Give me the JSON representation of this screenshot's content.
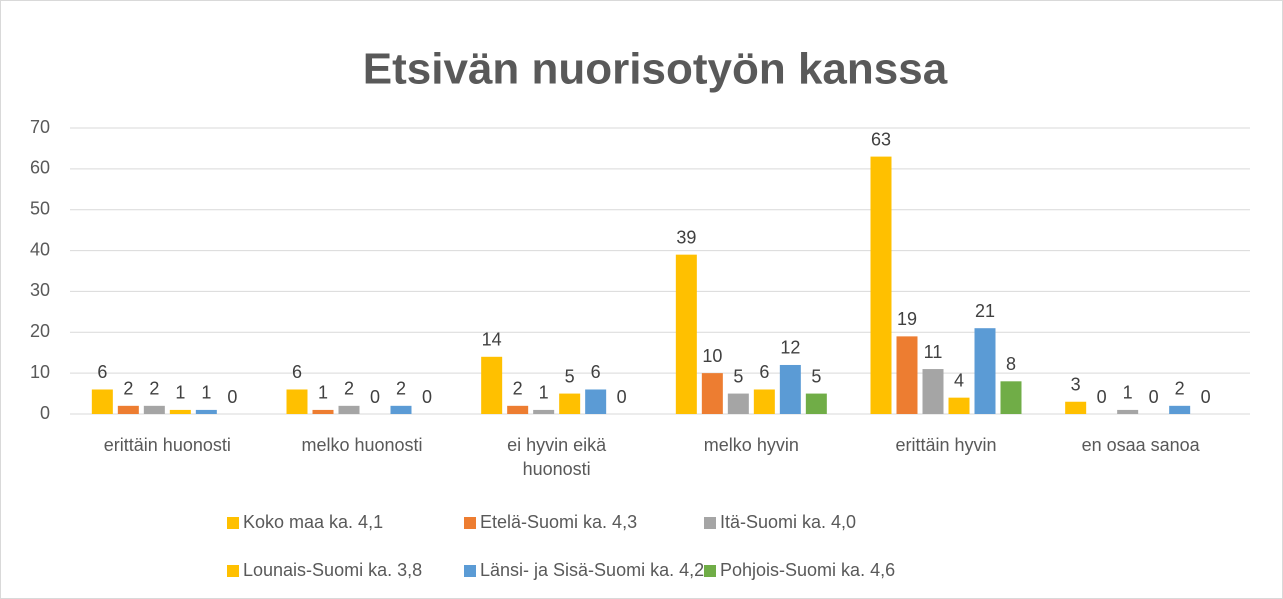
{
  "chart_data": {
    "type": "bar",
    "title": "Etsivän nuorisotyön kanssa",
    "categories": [
      "erittäin huonosti",
      "melko huonosti",
      "ei hyvin eikä huonosti",
      "melko hyvin",
      "erittäin hyvin",
      "en osaa sanoa"
    ],
    "series": [
      {
        "name": "Koko maa ka. 4,1",
        "color": "#FFC000",
        "values": [
          6,
          6,
          14,
          39,
          63,
          3
        ]
      },
      {
        "name": "Etelä-Suomi ka. 4,3",
        "color": "#ED7D31",
        "values": [
          2,
          1,
          2,
          10,
          19,
          0
        ]
      },
      {
        "name": "Itä-Suomi ka. 4,0",
        "color": "#A5A5A5",
        "values": [
          2,
          2,
          1,
          5,
          11,
          1
        ]
      },
      {
        "name": "Lounais-Suomi ka. 3,8",
        "color": "#FFC000",
        "values": [
          1,
          0,
          5,
          6,
          4,
          0
        ]
      },
      {
        "name": "Länsi- ja Sisä-Suomi ka. 4,2",
        "color": "#5B9BD5",
        "values": [
          1,
          2,
          6,
          12,
          21,
          2
        ]
      },
      {
        "name": "Pohjois-Suomi ka. 4,6",
        "color": "#70AD47",
        "values": [
          0,
          0,
          0,
          5,
          8,
          0
        ]
      }
    ],
    "ylim": [
      0,
      70
    ],
    "yticks": [
      0,
      10,
      20,
      30,
      40,
      50,
      60,
      70
    ],
    "grid": true,
    "legend": "bottom"
  }
}
